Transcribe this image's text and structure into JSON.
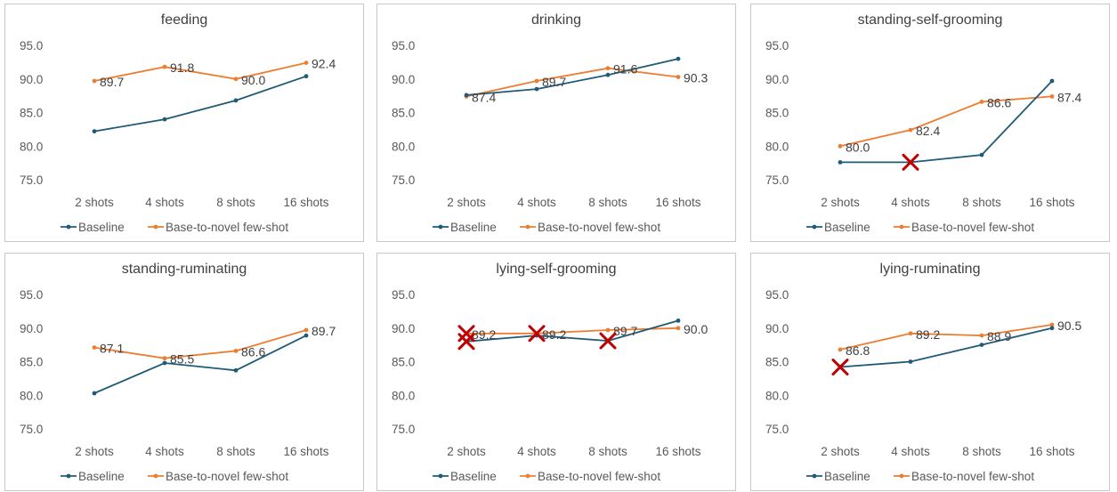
{
  "colors": {
    "baseline": "#1f5a78",
    "few_shot": "#ed7d31",
    "marker": "#c00000",
    "grid": "#d9d9d9"
  },
  "legend": {
    "baseline": "Baseline",
    "few_shot": "Base-to-novel few-shot"
  },
  "chart_data": [
    {
      "type": "line",
      "title": "feeding",
      "categories": [
        "2 shots",
        "4 shots",
        "8 shots",
        "16 shots"
      ],
      "ylim": [
        75,
        95
      ],
      "yticks": [
        "75.0",
        "80.0",
        "85.0",
        "90.0",
        "95.0"
      ],
      "grid": false,
      "legend_position": "bottom",
      "series": [
        {
          "name": "Baseline",
          "values": [
            82.2,
            84.0,
            86.8,
            90.4
          ]
        },
        {
          "name": "Base-to-novel few-shot",
          "values": [
            89.7,
            91.8,
            90.0,
            92.4
          ],
          "labels": [
            "89.7",
            "91.8",
            "90.0",
            "92.4"
          ]
        }
      ],
      "markers": []
    },
    {
      "type": "line",
      "title": "drinking",
      "categories": [
        "2 shots",
        "4 shots",
        "8 shots",
        "16 shots"
      ],
      "ylim": [
        75,
        95
      ],
      "yticks": [
        "75.0",
        "80.0",
        "85.0",
        "90.0",
        "95.0"
      ],
      "grid": false,
      "legend_position": "bottom",
      "series": [
        {
          "name": "Baseline",
          "values": [
            87.6,
            88.5,
            90.6,
            93.0
          ]
        },
        {
          "name": "Base-to-novel few-shot",
          "values": [
            87.4,
            89.7,
            91.6,
            90.3
          ],
          "labels": [
            "87.4",
            "89.7",
            "91.6",
            "90.3"
          ]
        }
      ],
      "markers": []
    },
    {
      "type": "line",
      "title": "standing-self-grooming",
      "categories": [
        "2 shots",
        "4 shots",
        "8 shots",
        "16 shots"
      ],
      "ylim": [
        75,
        95
      ],
      "yticks": [
        "75.0",
        "80.0",
        "85.0",
        "90.0",
        "95.0"
      ],
      "grid": false,
      "legend_position": "bottom",
      "series": [
        {
          "name": "Baseline",
          "values": [
            77.6,
            77.6,
            78.7,
            89.7
          ]
        },
        {
          "name": "Base-to-novel few-shot",
          "values": [
            80.0,
            82.4,
            86.6,
            87.4
          ],
          "labels": [
            "80.0",
            "82.4",
            "86.6",
            "87.4"
          ]
        }
      ],
      "markers": [
        {
          "x": "4 shots",
          "y": 77.6
        }
      ]
    },
    {
      "type": "line",
      "title": "standing-ruminating",
      "categories": [
        "2 shots",
        "4 shots",
        "8 shots",
        "16 shots"
      ],
      "ylim": [
        75,
        95
      ],
      "yticks": [
        "75.0",
        "80.0",
        "85.0",
        "90.0",
        "95.0"
      ],
      "grid": false,
      "legend_position": "bottom",
      "series": [
        {
          "name": "Baseline",
          "values": [
            80.3,
            84.8,
            83.7,
            88.9
          ]
        },
        {
          "name": "Base-to-novel few-shot",
          "values": [
            87.1,
            85.5,
            86.6,
            89.7
          ],
          "labels": [
            "87.1",
            "85.5",
            "86.6",
            "89.7"
          ]
        }
      ],
      "markers": []
    },
    {
      "type": "line",
      "title": "lying-self-grooming",
      "categories": [
        "2 shots",
        "4 shots",
        "8 shots",
        "16 shots"
      ],
      "ylim": [
        75,
        95
      ],
      "yticks": [
        "75.0",
        "80.0",
        "85.0",
        "90.0",
        "95.0"
      ],
      "grid": false,
      "legend_position": "bottom",
      "series": [
        {
          "name": "Baseline",
          "values": [
            88.0,
            88.9,
            88.1,
            91.1
          ]
        },
        {
          "name": "Base-to-novel few-shot",
          "values": [
            89.2,
            89.2,
            89.7,
            90.0
          ],
          "labels": [
            "89.2",
            "89.2",
            "89.7",
            "90.0"
          ]
        }
      ],
      "markers": [
        {
          "x": "2 shots",
          "y": 89.2
        },
        {
          "x": "2 shots",
          "y": 88.0
        },
        {
          "x": "4 shots",
          "y": 89.2
        },
        {
          "x": "8 shots",
          "y": 88.1
        }
      ]
    },
    {
      "type": "line",
      "title": "lying-ruminating",
      "categories": [
        "2 shots",
        "4 shots",
        "8 shots",
        "16 shots"
      ],
      "ylim": [
        75,
        95
      ],
      "yticks": [
        "75.0",
        "80.0",
        "85.0",
        "90.0",
        "95.0"
      ],
      "grid": false,
      "legend_position": "bottom",
      "series": [
        {
          "name": "Baseline",
          "values": [
            84.2,
            85.0,
            87.5,
            90.0
          ]
        },
        {
          "name": "Base-to-novel few-shot",
          "values": [
            86.8,
            89.2,
            88.9,
            90.5
          ],
          "labels": [
            "86.8",
            "89.2",
            "88.9",
            "90.5"
          ]
        }
      ],
      "markers": [
        {
          "x": "2 shots",
          "y": 84.2
        }
      ]
    }
  ]
}
